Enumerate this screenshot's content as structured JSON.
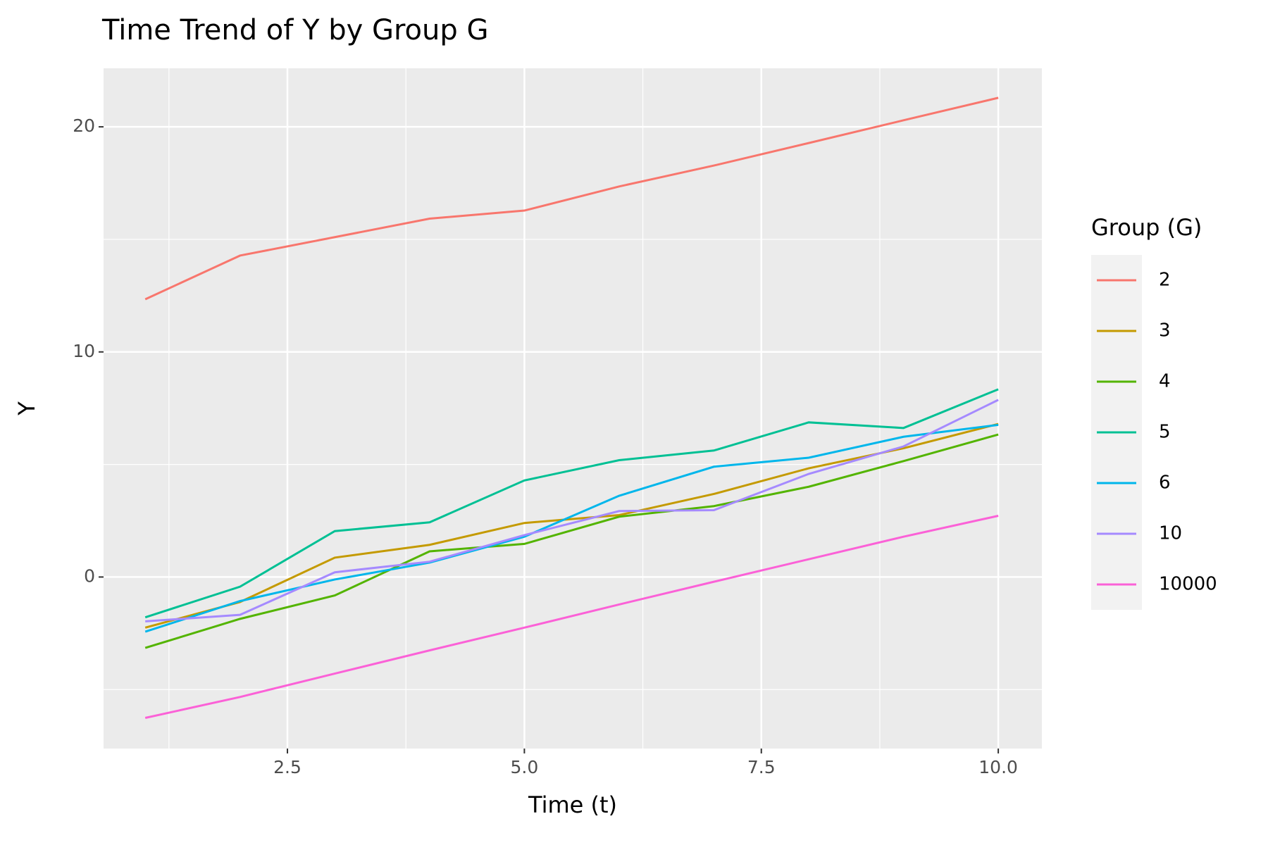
{
  "chart_data": {
    "type": "line",
    "title": "Time Trend of Y by Group G",
    "x_label": "Time (t)",
    "y_label": "Y",
    "legend_title": "Group (G)",
    "x": [
      1,
      2,
      3,
      4,
      5,
      6,
      7,
      8,
      9,
      10
    ],
    "series": [
      {
        "name": "2",
        "color": "#F8766D",
        "values": [
          12.34,
          14.28,
          15.1,
          15.92,
          16.28,
          17.35,
          18.28,
          19.28,
          20.29,
          21.29
        ]
      },
      {
        "name": "3",
        "color": "#C49A00",
        "values": [
          -2.25,
          -1.11,
          0.86,
          1.43,
          2.4,
          2.75,
          3.69,
          4.83,
          5.72,
          6.8
        ]
      },
      {
        "name": "4",
        "color": "#53B400",
        "values": [
          -3.15,
          -1.86,
          -0.82,
          1.14,
          1.47,
          2.68,
          3.15,
          4.01,
          5.15,
          6.33
        ]
      },
      {
        "name": "5",
        "color": "#00C094",
        "values": [
          -1.79,
          -0.43,
          2.04,
          2.43,
          4.29,
          5.19,
          5.62,
          6.87,
          6.62,
          8.34
        ]
      },
      {
        "name": "6",
        "color": "#00B6EB",
        "values": [
          -2.43,
          -1.07,
          -0.11,
          0.64,
          1.79,
          3.61,
          4.9,
          5.3,
          6.23,
          6.76
        ]
      },
      {
        "name": "10",
        "color": "#A58AFF",
        "values": [
          -1.97,
          -1.68,
          0.21,
          0.68,
          1.86,
          2.93,
          2.97,
          4.58,
          5.8,
          7.87
        ]
      },
      {
        "name": "10000",
        "color": "#FB61D7",
        "values": [
          -6.26,
          -5.33,
          -4.29,
          -3.26,
          -2.25,
          -1.22,
          -0.21,
          0.79,
          1.79,
          2.72
        ]
      }
    ],
    "xlim": [
      0.56,
      10.46
    ],
    "ylim": [
      -7.62,
      22.6
    ],
    "xticks": [
      2.5,
      {
        "value": 5,
        "label": "5.0"
      },
      7.5,
      {
        "value": 10,
        "label": "10.0"
      }
    ],
    "yticks": [
      0,
      10,
      20
    ],
    "grid": true,
    "legend": "right"
  }
}
